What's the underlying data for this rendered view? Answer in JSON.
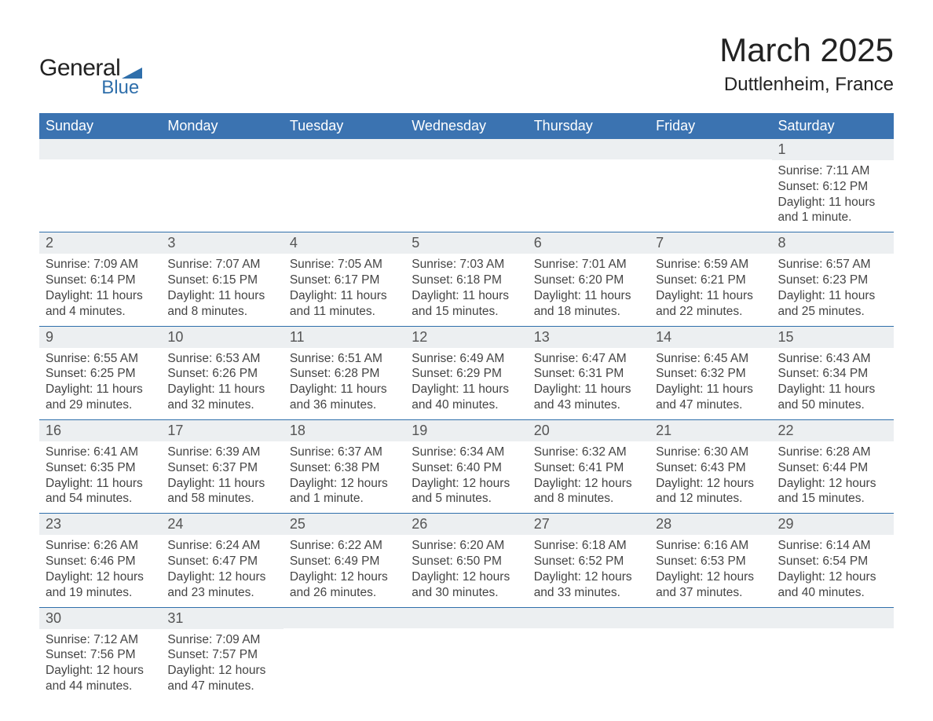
{
  "logo": {
    "text_general": "General",
    "text_blue": "Blue",
    "shape_color": "#2f6fab"
  },
  "title": {
    "month": "March 2025",
    "location": "Duttlenheim, France"
  },
  "colors": {
    "header_bg": "#3b73b1",
    "header_text": "#ffffff",
    "daynum_bg": "#eceff1",
    "row_divider": "#2f6fab",
    "body_text": "#444444",
    "page_bg": "#ffffff"
  },
  "fonts": {
    "title_size_pt": 42,
    "location_size_pt": 24,
    "dow_size_pt": 18,
    "daynum_size_pt": 18,
    "body_size_pt": 15.5
  },
  "days_of_week": [
    "Sunday",
    "Monday",
    "Tuesday",
    "Wednesday",
    "Thursday",
    "Friday",
    "Saturday"
  ],
  "weeks": [
    [
      null,
      null,
      null,
      null,
      null,
      null,
      {
        "n": "1",
        "sunrise": "Sunrise: 7:11 AM",
        "sunset": "Sunset: 6:12 PM",
        "daylight": "Daylight: 11 hours and 1 minute."
      }
    ],
    [
      {
        "n": "2",
        "sunrise": "Sunrise: 7:09 AM",
        "sunset": "Sunset: 6:14 PM",
        "daylight": "Daylight: 11 hours and 4 minutes."
      },
      {
        "n": "3",
        "sunrise": "Sunrise: 7:07 AM",
        "sunset": "Sunset: 6:15 PM",
        "daylight": "Daylight: 11 hours and 8 minutes."
      },
      {
        "n": "4",
        "sunrise": "Sunrise: 7:05 AM",
        "sunset": "Sunset: 6:17 PM",
        "daylight": "Daylight: 11 hours and 11 minutes."
      },
      {
        "n": "5",
        "sunrise": "Sunrise: 7:03 AM",
        "sunset": "Sunset: 6:18 PM",
        "daylight": "Daylight: 11 hours and 15 minutes."
      },
      {
        "n": "6",
        "sunrise": "Sunrise: 7:01 AM",
        "sunset": "Sunset: 6:20 PM",
        "daylight": "Daylight: 11 hours and 18 minutes."
      },
      {
        "n": "7",
        "sunrise": "Sunrise: 6:59 AM",
        "sunset": "Sunset: 6:21 PM",
        "daylight": "Daylight: 11 hours and 22 minutes."
      },
      {
        "n": "8",
        "sunrise": "Sunrise: 6:57 AM",
        "sunset": "Sunset: 6:23 PM",
        "daylight": "Daylight: 11 hours and 25 minutes."
      }
    ],
    [
      {
        "n": "9",
        "sunrise": "Sunrise: 6:55 AM",
        "sunset": "Sunset: 6:25 PM",
        "daylight": "Daylight: 11 hours and 29 minutes."
      },
      {
        "n": "10",
        "sunrise": "Sunrise: 6:53 AM",
        "sunset": "Sunset: 6:26 PM",
        "daylight": "Daylight: 11 hours and 32 minutes."
      },
      {
        "n": "11",
        "sunrise": "Sunrise: 6:51 AM",
        "sunset": "Sunset: 6:28 PM",
        "daylight": "Daylight: 11 hours and 36 minutes."
      },
      {
        "n": "12",
        "sunrise": "Sunrise: 6:49 AM",
        "sunset": "Sunset: 6:29 PM",
        "daylight": "Daylight: 11 hours and 40 minutes."
      },
      {
        "n": "13",
        "sunrise": "Sunrise: 6:47 AM",
        "sunset": "Sunset: 6:31 PM",
        "daylight": "Daylight: 11 hours and 43 minutes."
      },
      {
        "n": "14",
        "sunrise": "Sunrise: 6:45 AM",
        "sunset": "Sunset: 6:32 PM",
        "daylight": "Daylight: 11 hours and 47 minutes."
      },
      {
        "n": "15",
        "sunrise": "Sunrise: 6:43 AM",
        "sunset": "Sunset: 6:34 PM",
        "daylight": "Daylight: 11 hours and 50 minutes."
      }
    ],
    [
      {
        "n": "16",
        "sunrise": "Sunrise: 6:41 AM",
        "sunset": "Sunset: 6:35 PM",
        "daylight": "Daylight: 11 hours and 54 minutes."
      },
      {
        "n": "17",
        "sunrise": "Sunrise: 6:39 AM",
        "sunset": "Sunset: 6:37 PM",
        "daylight": "Daylight: 11 hours and 58 minutes."
      },
      {
        "n": "18",
        "sunrise": "Sunrise: 6:37 AM",
        "sunset": "Sunset: 6:38 PM",
        "daylight": "Daylight: 12 hours and 1 minute."
      },
      {
        "n": "19",
        "sunrise": "Sunrise: 6:34 AM",
        "sunset": "Sunset: 6:40 PM",
        "daylight": "Daylight: 12 hours and 5 minutes."
      },
      {
        "n": "20",
        "sunrise": "Sunrise: 6:32 AM",
        "sunset": "Sunset: 6:41 PM",
        "daylight": "Daylight: 12 hours and 8 minutes."
      },
      {
        "n": "21",
        "sunrise": "Sunrise: 6:30 AM",
        "sunset": "Sunset: 6:43 PM",
        "daylight": "Daylight: 12 hours and 12 minutes."
      },
      {
        "n": "22",
        "sunrise": "Sunrise: 6:28 AM",
        "sunset": "Sunset: 6:44 PM",
        "daylight": "Daylight: 12 hours and 15 minutes."
      }
    ],
    [
      {
        "n": "23",
        "sunrise": "Sunrise: 6:26 AM",
        "sunset": "Sunset: 6:46 PM",
        "daylight": "Daylight: 12 hours and 19 minutes."
      },
      {
        "n": "24",
        "sunrise": "Sunrise: 6:24 AM",
        "sunset": "Sunset: 6:47 PM",
        "daylight": "Daylight: 12 hours and 23 minutes."
      },
      {
        "n": "25",
        "sunrise": "Sunrise: 6:22 AM",
        "sunset": "Sunset: 6:49 PM",
        "daylight": "Daylight: 12 hours and 26 minutes."
      },
      {
        "n": "26",
        "sunrise": "Sunrise: 6:20 AM",
        "sunset": "Sunset: 6:50 PM",
        "daylight": "Daylight: 12 hours and 30 minutes."
      },
      {
        "n": "27",
        "sunrise": "Sunrise: 6:18 AM",
        "sunset": "Sunset: 6:52 PM",
        "daylight": "Daylight: 12 hours and 33 minutes."
      },
      {
        "n": "28",
        "sunrise": "Sunrise: 6:16 AM",
        "sunset": "Sunset: 6:53 PM",
        "daylight": "Daylight: 12 hours and 37 minutes."
      },
      {
        "n": "29",
        "sunrise": "Sunrise: 6:14 AM",
        "sunset": "Sunset: 6:54 PM",
        "daylight": "Daylight: 12 hours and 40 minutes."
      }
    ],
    [
      {
        "n": "30",
        "sunrise": "Sunrise: 7:12 AM",
        "sunset": "Sunset: 7:56 PM",
        "daylight": "Daylight: 12 hours and 44 minutes."
      },
      {
        "n": "31",
        "sunrise": "Sunrise: 7:09 AM",
        "sunset": "Sunset: 7:57 PM",
        "daylight": "Daylight: 12 hours and 47 minutes."
      },
      null,
      null,
      null,
      null,
      null
    ]
  ]
}
